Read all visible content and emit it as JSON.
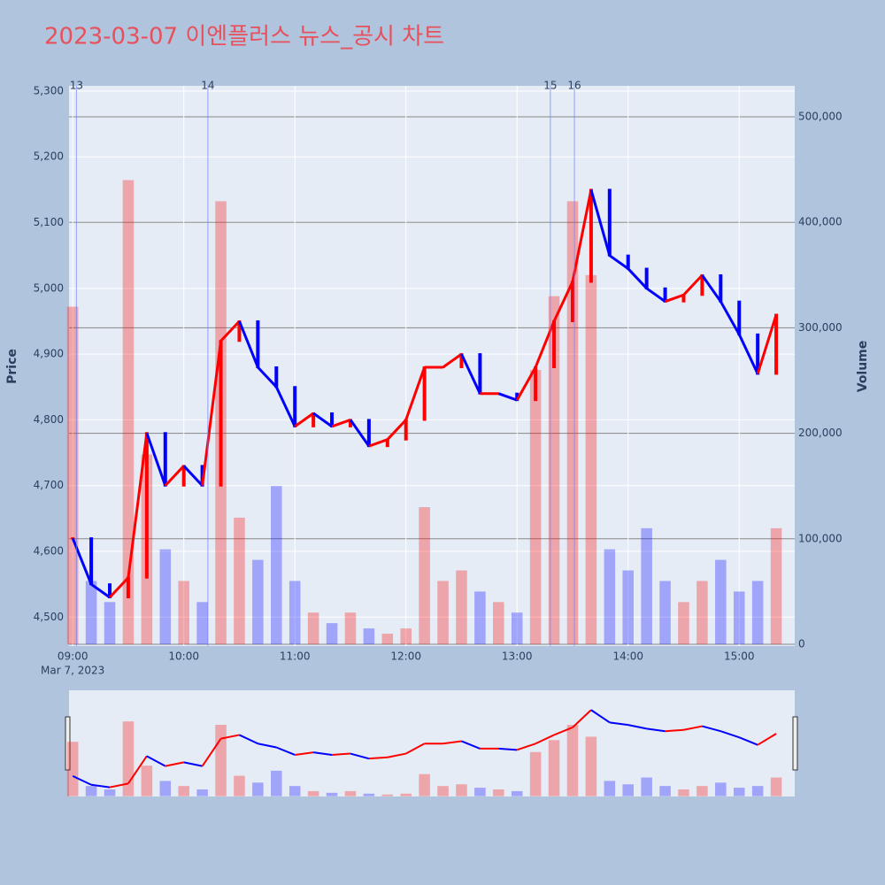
{
  "chart_data": {
    "type": "candlestick",
    "title": "2023-03-07 이엔플러스 뉴스_공시 차트",
    "y_label": "Price",
    "y2_label": "Volume",
    "x_date_label": "Mar 7, 2023",
    "up_color": "#ff0000",
    "down_color": "#0000ff",
    "x": [
      "2023-03-07 09:00",
      "2023-03-07 09:10",
      "2023-03-07 09:20",
      "2023-03-07 09:30",
      "2023-03-07 09:40",
      "2023-03-07 09:50",
      "2023-03-07 10:00",
      "2023-03-07 10:10",
      "2023-03-07 10:20",
      "2023-03-07 10:30",
      "2023-03-07 10:40",
      "2023-03-07 10:50",
      "2023-03-07 11:00",
      "2023-03-07 11:10",
      "2023-03-07 11:20",
      "2023-03-07 11:30",
      "2023-03-07 11:40",
      "2023-03-07 11:50",
      "2023-03-07 12:00",
      "2023-03-07 12:10",
      "2023-03-07 12:20",
      "2023-03-07 12:30",
      "2023-03-07 12:40",
      "2023-03-07 12:50",
      "2023-03-07 13:00",
      "2023-03-07 13:10",
      "2023-03-07 13:20",
      "2023-03-07 13:30",
      "2023-03-07 13:40",
      "2023-03-07 13:50",
      "2023-03-07 14:00",
      "2023-03-07 14:10",
      "2023-03-07 14:20",
      "2023-03-07 14:30",
      "2023-03-07 14:40",
      "2023-03-07 14:50",
      "2023-03-07 15:00",
      "2023-03-07 15:10",
      "2023-03-07 15:20"
    ],
    "series": [
      {
        "name": "Price",
        "values": [
          4620,
          4550,
          4530,
          4560,
          4780,
          4700,
          4730,
          4700,
          4920,
          4950,
          4880,
          4850,
          4790,
          4810,
          4790,
          4800,
          4760,
          4770,
          4800,
          4880,
          4880,
          4900,
          4840,
          4840,
          4830,
          4880,
          4950,
          5010,
          5150,
          5050,
          5030,
          5000,
          4980,
          4990,
          5020,
          4980,
          4930,
          4870,
          4960
        ]
      },
      {
        "name": "Volume",
        "axis": "y2",
        "values": [
          320000,
          60000,
          40000,
          440000,
          180000,
          90000,
          60000,
          40000,
          420000,
          120000,
          80000,
          150000,
          60000,
          30000,
          20000,
          30000,
          15000,
          10000,
          15000,
          130000,
          60000,
          70000,
          50000,
          40000,
          30000,
          260000,
          330000,
          420000,
          350000,
          90000,
          70000,
          110000,
          60000,
          40000,
          60000,
          80000,
          50000,
          60000,
          110000
        ]
      }
    ],
    "xlim": [
      "2023-03-07 08:58",
      "2023-03-07 15:30"
    ],
    "xticks": [
      {
        "value": "2023-03-07 09:00",
        "label": "09:00"
      },
      {
        "value": "2023-03-07 10:00",
        "label": "10:00"
      },
      {
        "value": "2023-03-07 11:00",
        "label": "11:00"
      },
      {
        "value": "2023-03-07 12:00",
        "label": "12:00"
      },
      {
        "value": "2023-03-07 13:00",
        "label": "13:00"
      },
      {
        "value": "2023-03-07 14:00",
        "label": "14:00"
      },
      {
        "value": "2023-03-07 15:00",
        "label": "15:00"
      }
    ],
    "ylim": [
      4456,
      5308
    ],
    "yticks": [
      {
        "value": 4500,
        "label": "4,500"
      },
      {
        "value": 4600,
        "label": "4,600"
      },
      {
        "value": 4700,
        "label": "4,700"
      },
      {
        "value": 4800,
        "label": "4,800"
      },
      {
        "value": 4900,
        "label": "4,900"
      },
      {
        "value": 5000,
        "label": "5,000"
      },
      {
        "value": 5100,
        "label": "5,100"
      },
      {
        "value": 5200,
        "label": "5,200"
      },
      {
        "value": 5300,
        "label": "5,300"
      }
    ],
    "y2lim": [
      -1700,
      529400
    ],
    "y2ticks": [
      0,
      {
        "value": 100000,
        "label": "100,000"
      },
      {
        "value": 200000,
        "label": "200,000"
      },
      {
        "value": 300000,
        "label": "300,000"
      },
      {
        "value": 400000,
        "label": "400,000"
      },
      {
        "value": 500000,
        "label": "500,000"
      }
    ],
    "annotations": [
      {
        "x": "2023-03-07 09:02",
        "label": "13"
      },
      {
        "x": "2023-03-07 10:13",
        "label": "14"
      },
      {
        "x": "2023-03-07 13:18",
        "label": "15"
      },
      {
        "x": "2023-03-07 13:31",
        "label": "16"
      }
    ],
    "grid": true
  }
}
